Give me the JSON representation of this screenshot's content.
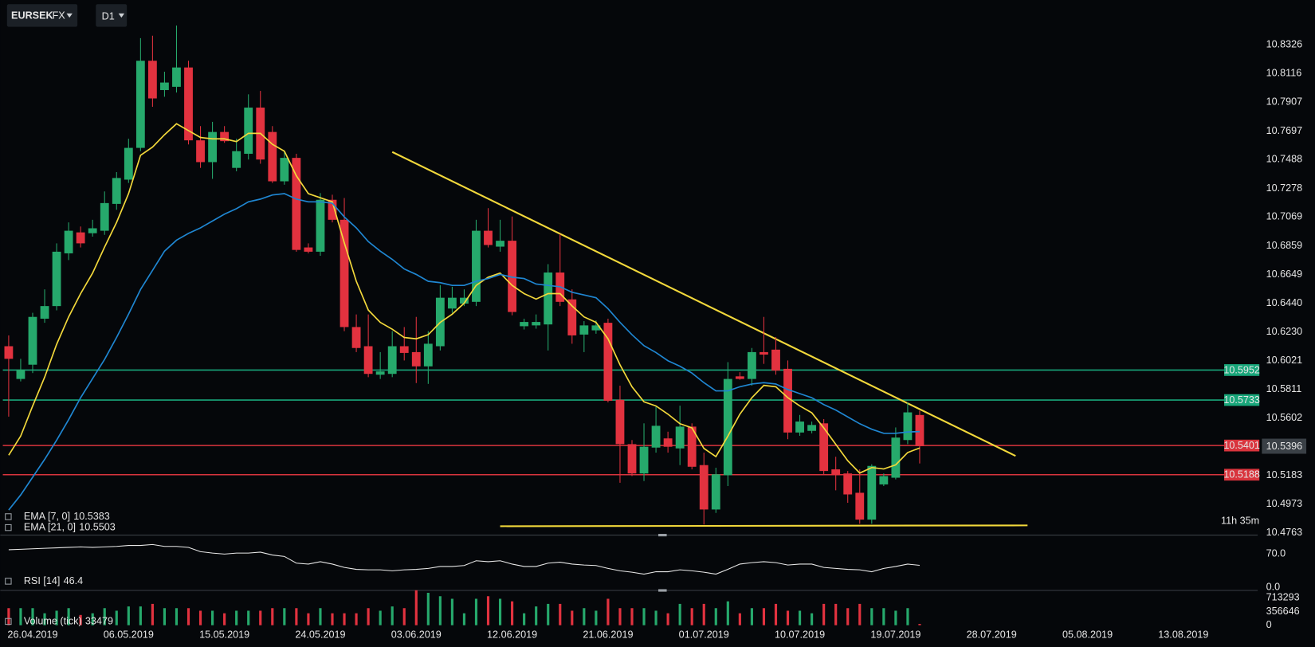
{
  "header": {
    "symbol": "EURSEK",
    "market": "FX",
    "timeframe": "D1"
  },
  "chart_data": [
    {
      "type": "candlestick",
      "open": [
        10.6126,
        10.5887,
        10.5991,
        10.6327,
        10.6419,
        10.6804,
        10.6957,
        10.6951,
        10.6969,
        10.7165,
        10.7342,
        10.7574,
        10.821,
        10.7996,
        10.802,
        10.8161,
        10.7629,
        10.747,
        10.769,
        10.7428,
        10.7531,
        10.7868,
        10.769,
        10.733,
        10.7501,
        10.6847,
        10.6816,
        10.7195,
        10.7049,
        10.6266,
        10.6126,
        10.5918,
        10.5924,
        10.6126,
        10.6083,
        10.5979,
        10.6126,
        10.6401,
        10.6437,
        10.645,
        10.6969,
        10.6853,
        10.6896,
        10.6272,
        10.6278,
        10.6285,
        10.6664,
        10.6468,
        10.6211,
        10.6242,
        10.6297,
        10.5735,
        10.5411,
        10.5197,
        10.5386,
        10.5453,
        10.538,
        10.5539,
        10.5258,
        10.4934,
        10.5184,
        10.5906,
        10.5887,
        10.6083,
        10.6101,
        10.5961,
        10.5496,
        10.5508,
        10.5563,
        10.5227,
        10.5197,
        10.5056,
        10.486,
        10.5117,
        10.5166,
        10.5441,
        10.5624
      ],
      "high": [
        10.6205,
        10.6034,
        10.637,
        10.6541,
        10.6877,
        10.703,
        10.7,
        10.7049,
        10.7256,
        10.7397,
        10.7641,
        10.8375,
        10.8393,
        10.813,
        10.8467,
        10.821,
        10.7733,
        10.7764,
        10.7733,
        10.7641,
        10.7965,
        10.799,
        10.7733,
        10.755,
        10.7531,
        10.6877,
        10.7244,
        10.7232,
        10.7208,
        10.6358,
        10.6358,
        10.6083,
        10.6236,
        10.6266,
        10.634,
        10.6236,
        10.6572,
        10.656,
        10.6541,
        10.7049,
        10.7134,
        10.7049,
        10.7073,
        10.6327,
        10.6358,
        10.6725,
        10.6945,
        10.6541,
        10.6309,
        10.6315,
        10.6327,
        10.5838,
        10.5441,
        10.5563,
        10.5686,
        10.5502,
        10.5692,
        10.5563,
        10.5349,
        10.5239,
        10.601,
        10.5936,
        10.6113,
        10.634,
        10.6193,
        10.6022,
        10.5624,
        10.5576,
        10.5594,
        10.5319,
        10.5215,
        10.5227,
        10.5264,
        10.5197,
        10.5533,
        10.5716,
        10.5655
      ],
      "low": [
        10.5612,
        10.5869,
        10.593,
        10.6297,
        10.6388,
        10.6755,
        10.6847,
        10.6926,
        10.6939,
        10.7122,
        10.7318,
        10.755,
        10.7874,
        10.7947,
        10.7978,
        10.7599,
        10.7428,
        10.7348,
        10.7611,
        10.7403,
        10.7489,
        10.7458,
        10.7318,
        10.7305,
        10.6816,
        10.6804,
        10.6786,
        10.703,
        10.6236,
        10.6083,
        10.59,
        10.5887,
        10.59,
        10.6022,
        10.5857,
        10.5851,
        10.6095,
        10.637,
        10.6419,
        10.6419,
        10.6847,
        10.6816,
        10.6352,
        10.6248,
        10.6254,
        10.6095,
        10.6419,
        10.6144,
        10.6083,
        10.6217,
        10.5716,
        10.5129,
        10.5178,
        10.5142,
        10.5349,
        10.5349,
        10.5258,
        10.5227,
        10.4824,
        10.4909,
        10.5105,
        10.5881,
        10.5838,
        10.5997,
        10.5918,
        10.5447,
        10.5472,
        10.549,
        10.5191,
        10.5074,
        10.4983,
        10.483,
        10.483,
        10.5105,
        10.5154,
        10.5411,
        10.527
      ],
      "close": [
        10.6034,
        10.5955,
        10.634,
        10.6419,
        10.6816,
        10.6969,
        10.6877,
        10.6987,
        10.7171,
        10.7354,
        10.7574,
        10.821,
        10.7935,
        10.8051,
        10.8161,
        10.7629,
        10.747,
        10.769,
        10.7623,
        10.755,
        10.7868,
        10.7489,
        10.733,
        10.7501,
        10.6829,
        10.6816,
        10.7195,
        10.7049,
        10.6266,
        10.6113,
        10.5924,
        10.5942,
        10.6126,
        10.6077,
        10.5979,
        10.6144,
        10.648,
        10.648,
        10.648,
        10.6969,
        10.6865,
        10.6896,
        10.6376,
        10.6303,
        10.6303,
        10.6664,
        10.645,
        10.6205,
        10.6278,
        10.6278,
        10.5728,
        10.5411,
        10.5197,
        10.5392,
        10.5545,
        10.5392,
        10.5539,
        10.5246,
        10.4934,
        10.5191,
        10.5887,
        10.5887,
        10.6083,
        10.6065,
        10.5948,
        10.5496,
        10.5576,
        10.5551,
        10.5215,
        10.5184,
        10.5044,
        10.486,
        10.5252,
        10.5178,
        10.5459,
        10.5643,
        10.5396
      ],
      "up_color": "#26a96c",
      "down_color": "#e2323f",
      "series": [
        {
          "name": "EMA [7, 0]",
          "value_label": "10.5383",
          "color": "#f2d83b",
          "values": [
            10.533,
            10.547,
            10.569,
            10.59,
            10.614,
            10.634,
            10.651,
            10.666,
            10.685,
            10.703,
            10.724,
            10.752,
            10.758,
            10.767,
            10.775,
            10.77,
            10.765,
            10.764,
            10.764,
            10.762,
            10.768,
            10.768,
            10.76,
            10.755,
            10.737,
            10.724,
            10.721,
            10.718,
            10.688,
            10.66,
            10.639,
            10.63,
            10.625,
            10.619,
            10.618,
            10.621,
            10.63,
            10.636,
            10.644,
            10.657,
            10.663,
            10.666,
            10.657,
            10.651,
            10.647,
            10.651,
            10.651,
            10.642,
            10.634,
            10.63,
            10.618,
            10.599,
            10.583,
            10.572,
            10.569,
            10.563,
            10.556,
            10.553,
            10.538,
            10.532,
            10.547,
            10.563,
            10.575,
            10.584,
            10.583,
            10.575,
            10.569,
            10.564,
            10.553,
            10.541,
            10.529,
            10.52,
            10.524,
            10.523,
            10.526,
            10.535,
            10.5383
          ]
        },
        {
          "name": "EMA [21, 0]",
          "value_label": "10.5503",
          "color": "#1f86d1",
          "values": [
            10.493,
            10.504,
            10.517,
            10.53,
            10.544,
            10.559,
            10.575,
            10.589,
            10.603,
            10.619,
            10.636,
            10.654,
            10.668,
            10.682,
            10.69,
            10.695,
            10.699,
            10.704,
            10.709,
            10.713,
            10.718,
            10.72,
            10.723,
            10.724,
            10.72,
            10.718,
            10.718,
            10.717,
            10.707,
            10.699,
            10.689,
            10.682,
            10.676,
            10.669,
            10.665,
            10.66,
            10.659,
            10.657,
            10.657,
            10.66,
            10.662,
            10.665,
            10.663,
            10.662,
            10.658,
            10.657,
            10.656,
            10.652,
            10.65,
            10.648,
            10.64,
            10.63,
            10.621,
            10.613,
            10.608,
            10.602,
            10.598,
            10.593,
            10.586,
            10.58,
            10.58,
            10.583,
            10.585,
            10.586,
            10.585,
            10.581,
            10.578,
            10.575,
            10.57,
            10.566,
            10.561,
            10.556,
            10.552,
            10.549,
            10.549,
            10.55,
            10.5503
          ]
        }
      ],
      "levels": [
        {
          "value": 10.5952,
          "color": "#18a67a"
        },
        {
          "value": 10.5733,
          "color": "#18a67a"
        },
        {
          "value": 10.5401,
          "color": "#d9343d"
        },
        {
          "value": 10.5188,
          "color": "#d9343d"
        }
      ],
      "current_price": {
        "value": 10.5396,
        "color": "#3a4046"
      },
      "trendlines": [
        {
          "x": [
            32,
            84
          ],
          "y": [
            10.7544,
            10.5325
          ],
          "color": "#f2d83b"
        },
        {
          "x": [
            41,
            85
          ],
          "y": [
            10.4812,
            10.4818
          ],
          "color": "#f2d83b"
        }
      ],
      "countdown": "11h 35m",
      "xlim": [
        -0.7,
        104.2
      ],
      "ylim": [
        10.475,
        10.847
      ],
      "xticks": [
        {
          "value": 2,
          "label": "26.04.2019"
        },
        {
          "value": 10,
          "label": "06.05.2019"
        },
        {
          "value": 18,
          "label": "15.05.2019"
        },
        {
          "value": 26,
          "label": "24.05.2019"
        },
        {
          "value": 34,
          "label": "03.06.2019"
        },
        {
          "value": 42,
          "label": "12.06.2019"
        },
        {
          "value": 50,
          "label": "21.06.2019"
        },
        {
          "value": 58,
          "label": "01.07.2019"
        },
        {
          "value": 66,
          "label": "10.07.2019"
        },
        {
          "value": 74,
          "label": "19.07.2019"
        },
        {
          "value": 82,
          "label": "28.07.2019"
        },
        {
          "value": 90,
          "label": "05.08.2019"
        },
        {
          "value": 98,
          "label": "13.08.2019"
        }
      ],
      "yticks": [
        10.8326,
        10.8116,
        10.7907,
        10.7697,
        10.7488,
        10.7278,
        10.7069,
        10.6859,
        10.6649,
        {
          "value": 10.644,
          "label": "10.6440"
        },
        {
          "value": 10.623,
          "label": "10.6230"
        },
        10.6021,
        10.5811,
        10.5602,
        10.5183,
        10.4973,
        10.4763
      ]
    },
    {
      "type": "line",
      "series": [
        {
          "name": "RSI [14]",
          "value_label": "46.4",
          "color": "#e8e8e8",
          "values": [
            79,
            80,
            81,
            82,
            83,
            84,
            85,
            84,
            85,
            86,
            88,
            88,
            90,
            86,
            86,
            84,
            75,
            72,
            70,
            72,
            72,
            74,
            68,
            65,
            51,
            49,
            54,
            49,
            42,
            38,
            37,
            37,
            35,
            37,
            38,
            40,
            44,
            44,
            46,
            56,
            54,
            56,
            49,
            44,
            44,
            51,
            53,
            49,
            47,
            46,
            40,
            35,
            32,
            28,
            33,
            33,
            37,
            35,
            32,
            28,
            38,
            49,
            52,
            54,
            52,
            47,
            49,
            49,
            42,
            40,
            38,
            37,
            33,
            40,
            44,
            49,
            46.4
          ]
        }
      ],
      "ylim": [
        0,
        100
      ],
      "yticks": [
        {
          "value": 70,
          "label": "70.0"
        },
        {
          "value": 0,
          "label": "0.0"
        }
      ]
    },
    {
      "type": "bar",
      "series": [
        {
          "name": "Volume (tick)",
          "value_label": "33479",
          "values": [
            445800,
            445800,
            445800,
            312060,
            378930,
            445800,
            267480,
            312060,
            445800,
            378930,
            490380,
            490380,
            557250,
            445800,
            445800,
            445800,
            378930,
            378930,
            312060,
            378930,
            378930,
            378930,
            445800,
            445800,
            445800,
            312060,
            445800,
            312060,
            312060,
            312060,
            445800,
            378930,
            490380,
            445800,
            913890,
            847020,
            757860,
            690990,
            312060,
            690990,
            757860,
            690990,
            624120,
            312060,
            490380,
            557250,
            557250,
            378930,
            445800,
            378930,
            690990,
            445800,
            445800,
            445800,
            378930,
            312060,
            557250,
            445800,
            557250,
            445800,
            624120,
            312060,
            445800,
            445800,
            557250,
            378930,
            378930,
            312060,
            557250,
            557250,
            445800,
            557250,
            445800,
            445800,
            378930,
            445800,
            33479
          ]
        }
      ],
      "ylim": [
        0,
        920000
      ],
      "yticks": [
        713293,
        356646,
        0
      ]
    }
  ]
}
